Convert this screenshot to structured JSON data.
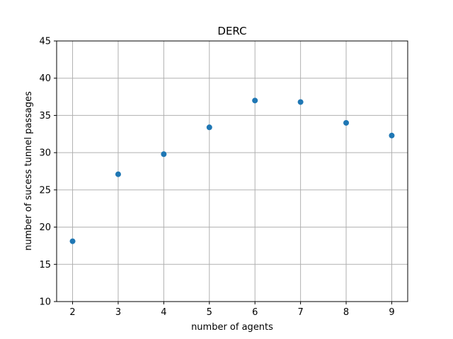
{
  "chart_data": {
    "type": "scatter",
    "title": "DERC",
    "xlabel": "number of agents",
    "ylabel": "number of sucess tunnel passages",
    "x": [
      2,
      3,
      4,
      5,
      6,
      7,
      8,
      9
    ],
    "y": [
      18.1,
      27.1,
      29.8,
      33.4,
      37.0,
      36.8,
      34.0,
      32.3
    ],
    "xlim": [
      1.65,
      9.35
    ],
    "ylim": [
      10,
      45
    ],
    "xticks": [
      2,
      3,
      4,
      5,
      6,
      7,
      8,
      9
    ],
    "yticks": [
      10,
      15,
      20,
      25,
      30,
      35,
      40,
      45
    ],
    "grid": true,
    "marker_color": "#1f77b4"
  }
}
